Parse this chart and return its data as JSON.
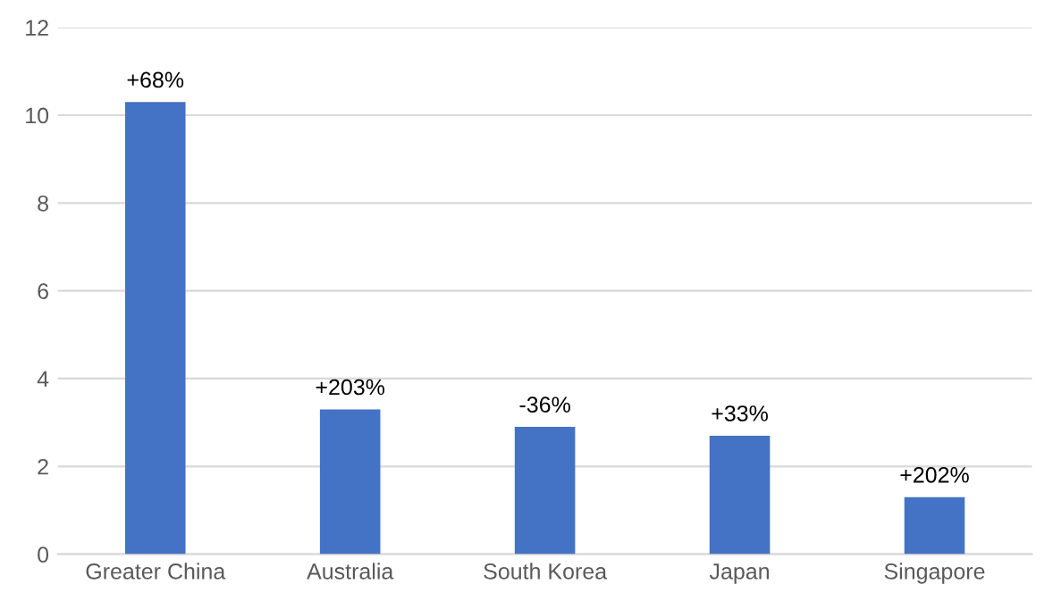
{
  "chart_data": {
    "type": "bar",
    "categories": [
      "Greater China",
      "Australia",
      "South Korea",
      "Japan",
      "Singapore"
    ],
    "values": [
      10.3,
      3.3,
      2.9,
      2.7,
      1.3
    ],
    "annotations": [
      {
        "text": "+68%",
        "x": "Greater China",
        "y": 10.3
      },
      {
        "text": "+203%",
        "x": "Australia",
        "y": 3.3
      },
      {
        "text": "-36%",
        "x": "South Korea",
        "y": 2.9
      },
      {
        "text": "+33%",
        "x": "Japan",
        "y": 2.7
      },
      {
        "text": "+202%",
        "x": "Singapore",
        "y": 1.3
      }
    ],
    "color": "#4472c4",
    "ylim": [
      0,
      12
    ],
    "yticks": [
      0,
      2,
      4,
      6,
      8,
      10,
      12
    ],
    "grid": "y",
    "legend": false
  }
}
